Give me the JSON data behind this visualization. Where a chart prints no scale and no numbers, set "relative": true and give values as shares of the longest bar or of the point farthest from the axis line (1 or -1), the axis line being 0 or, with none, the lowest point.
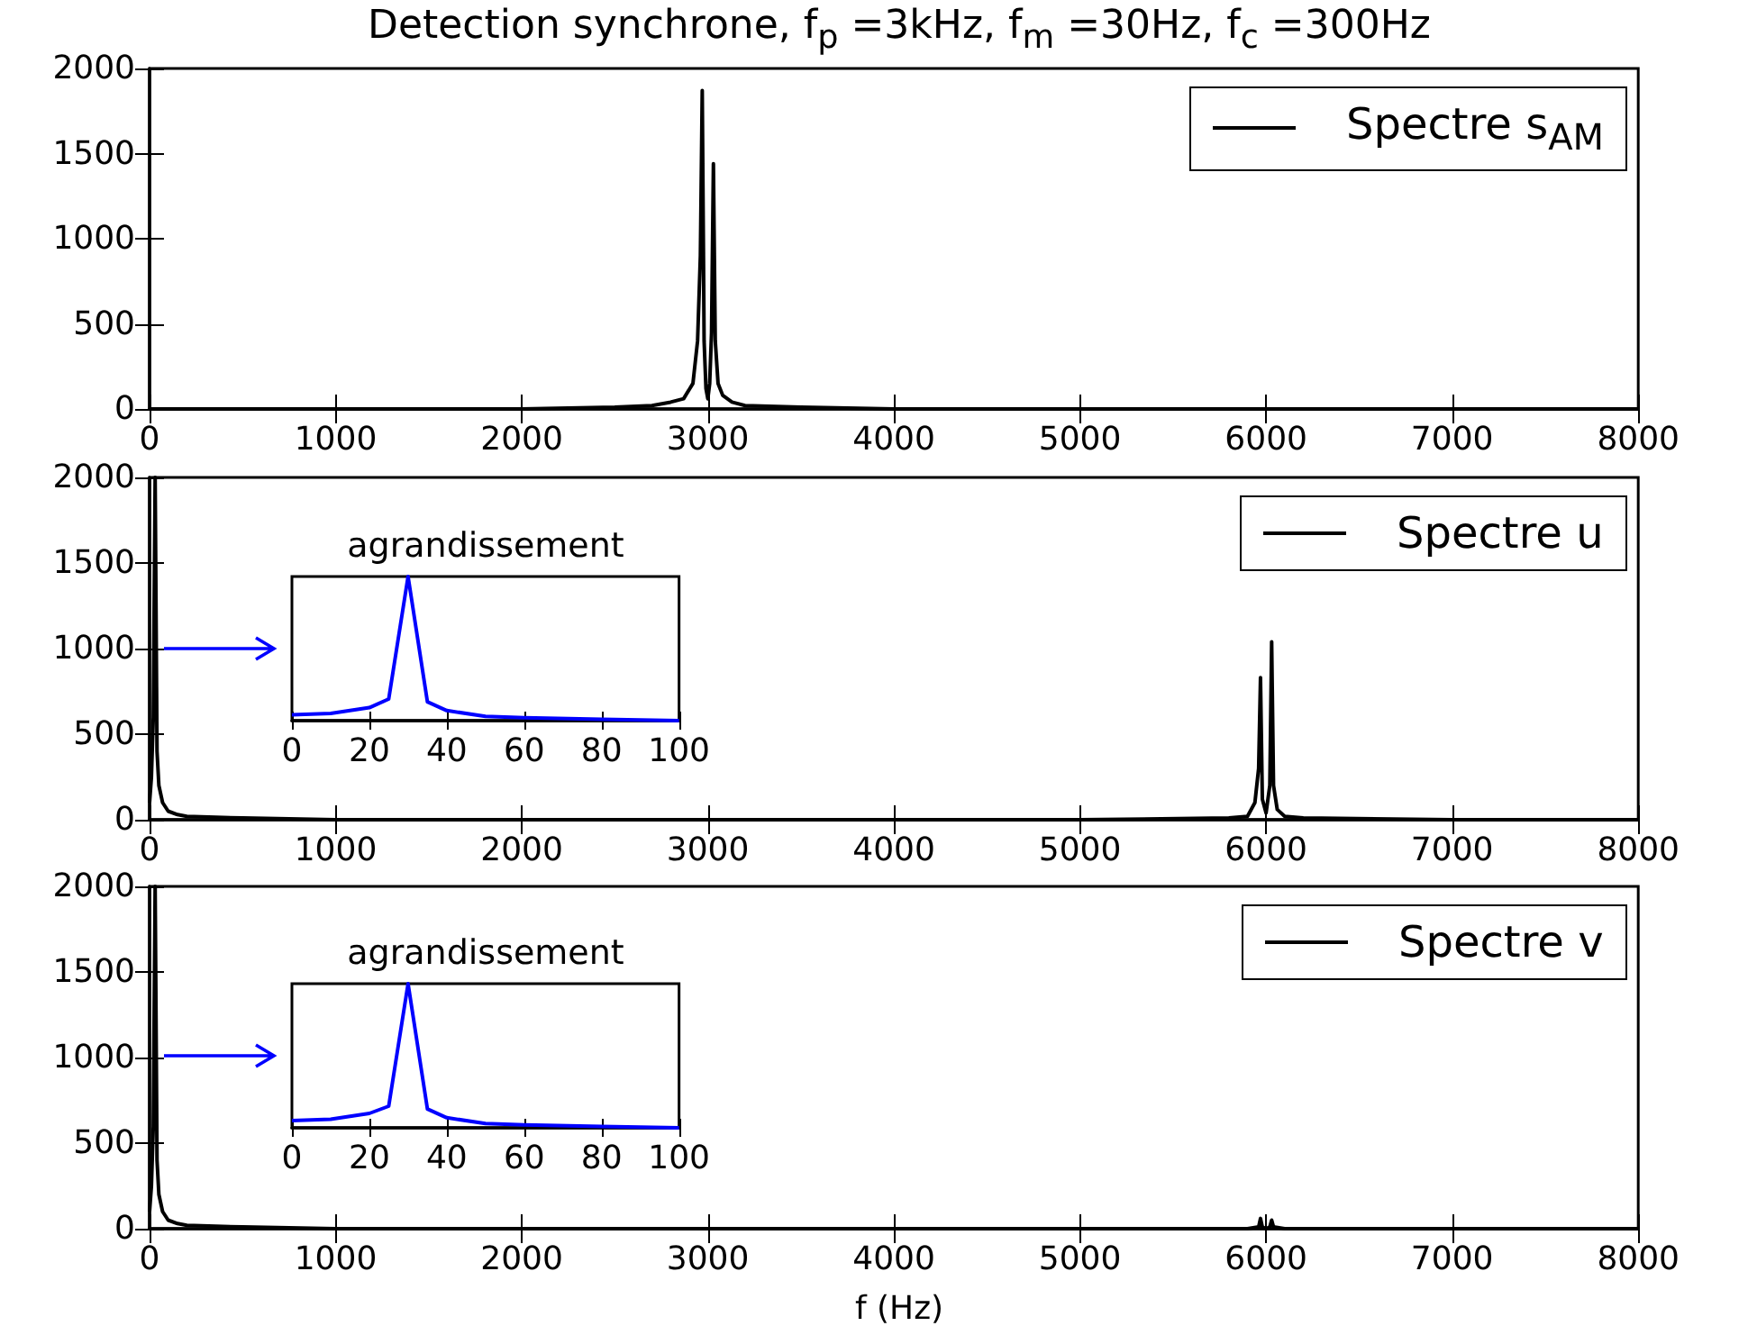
{
  "chart_data": [
    {
      "type": "line",
      "title": "Detection synchrone, f$_{p}$ =3kHz, f$_{m}$ =30Hz, f$_{c}$ =300Hz",
      "legend": "top right",
      "xlim": [
        0,
        8000
      ],
      "xticks": [
        0,
        1000,
        2000,
        3000,
        4000,
        5000,
        6000,
        7000,
        8000
      ],
      "ylim": [
        0,
        2000
      ],
      "yticks": [
        0,
        500,
        1000,
        1500,
        2000
      ],
      "series": [
        {
          "name": "Spectre s$_{AM}$",
          "color": "#000000",
          "x": [
            0,
            1000,
            2000,
            2500,
            2700,
            2800,
            2870,
            2920,
            2945,
            2960,
            2970,
            2980,
            2990,
            3000,
            3010,
            3020,
            3030,
            3040,
            3055,
            3080,
            3130,
            3200,
            3500,
            4000,
            8000
          ],
          "values": [
            0,
            0,
            0,
            10,
            20,
            40,
            60,
            150,
            400,
            900,
            1870,
            400,
            120,
            60,
            150,
            450,
            1440,
            400,
            150,
            80,
            40,
            20,
            10,
            0,
            0
          ]
        }
      ]
    },
    {
      "type": "line",
      "legend": "top right",
      "xlim": [
        0,
        8000
      ],
      "xticks": [
        0,
        1000,
        2000,
        3000,
        4000,
        5000,
        6000,
        7000,
        8000
      ],
      "ylim": [
        0,
        2000
      ],
      "yticks": [
        0,
        500,
        1000,
        1500,
        2000
      ],
      "series": [
        {
          "name": "Spectre u",
          "color": "#000000",
          "x": [
            0,
            10,
            20,
            30,
            40,
            50,
            70,
            100,
            150,
            200,
            500,
            1000,
            5000,
            5800,
            5900,
            5940,
            5960,
            5970,
            5980,
            6000,
            6020,
            6030,
            6040,
            6060,
            6100,
            6200,
            7000,
            8000
          ],
          "values": [
            100,
            250,
            600,
            2000,
            400,
            200,
            100,
            50,
            30,
            20,
            10,
            0,
            0,
            10,
            20,
            100,
            300,
            830,
            120,
            40,
            200,
            1040,
            200,
            60,
            20,
            10,
            0,
            0
          ]
        }
      ]
    },
    {
      "type": "line",
      "title": "agrandissement",
      "relative": true,
      "tick_labels": "x",
      "xlim": [
        0,
        100
      ],
      "xticks": [
        0,
        20,
        40,
        60,
        80,
        100
      ],
      "series": [
        {
          "color": "#0000ff",
          "x": [
            0,
            10,
            20,
            25,
            30,
            35,
            40,
            50,
            60,
            80,
            100
          ],
          "values": [
            0.04,
            0.05,
            0.09,
            0.15,
            1,
            0.13,
            0.07,
            0.03,
            0.02,
            0.01,
            0
          ]
        }
      ]
    },
    {
      "type": "line",
      "xlabel": "f (Hz)",
      "legend": "top right",
      "xlim": [
        0,
        8000
      ],
      "xticks": [
        0,
        1000,
        2000,
        3000,
        4000,
        5000,
        6000,
        7000,
        8000
      ],
      "ylim": [
        0,
        2000
      ],
      "yticks": [
        0,
        500,
        1000,
        1500,
        2000
      ],
      "series": [
        {
          "name": "Spectre v",
          "color": "#000000",
          "x": [
            0,
            10,
            20,
            30,
            40,
            50,
            70,
            100,
            150,
            200,
            500,
            1000,
            5900,
            5960,
            5970,
            5980,
            6000,
            6020,
            6030,
            6040,
            6100,
            8000
          ],
          "values": [
            100,
            250,
            600,
            2000,
            400,
            200,
            100,
            50,
            30,
            20,
            10,
            0,
            0,
            10,
            60,
            10,
            0,
            10,
            50,
            10,
            0,
            0
          ]
        }
      ]
    },
    {
      "type": "line",
      "title": "agrandissement",
      "relative": true,
      "tick_labels": "x",
      "xlim": [
        0,
        100
      ],
      "xticks": [
        0,
        20,
        40,
        60,
        80,
        100
      ],
      "series": [
        {
          "color": "#0000ff",
          "x": [
            0,
            10,
            20,
            25,
            30,
            35,
            40,
            50,
            60,
            80,
            100
          ],
          "values": [
            0.05,
            0.06,
            0.1,
            0.15,
            1,
            0.13,
            0.07,
            0.03,
            0.02,
            0.01,
            0
          ]
        }
      ]
    }
  ]
}
